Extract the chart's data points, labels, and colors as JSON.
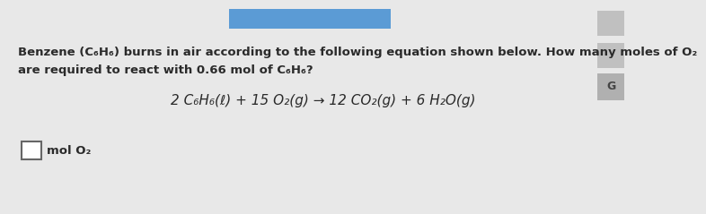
{
  "bg_color": "#e8e8e8",
  "text_color": "#2a2a2a",
  "question_line1": "Benzene (C₆H₆) burns in air according to the following equation shown below. How many moles of O₂",
  "question_line2": "are required to react with 0.66 mol of C₆H₆?",
  "equation": "2 C₆H₆(ℓ) + 15 O₂(g) → 12 CO₂(g) + 6 H₂O(g)",
  "answer_label": "mol O₂",
  "sidebar_color": "#c8c8c8",
  "g_button_color": "#b0b0b0",
  "top_bar_color": "#5b9bd5",
  "question_fontsize": 9.5,
  "equation_fontsize": 11.0,
  "answer_fontsize": 9.5
}
